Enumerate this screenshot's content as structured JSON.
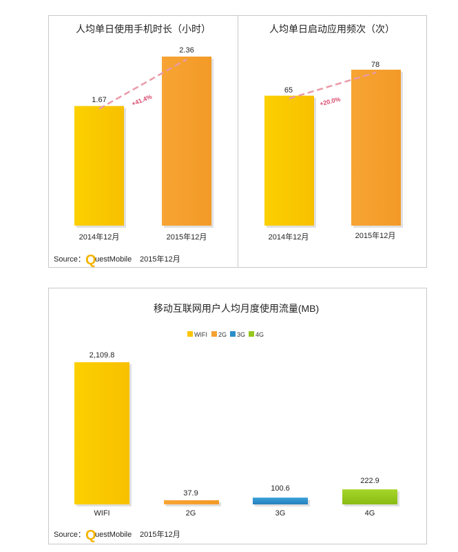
{
  "source_label": "Source：",
  "source_brand": "QuestMobile",
  "source_date": "2015年12月",
  "colors": {
    "yellow": "#fcc500",
    "orange": "#f5a02f",
    "blue": "#2a8ec9",
    "green": "#96c81e",
    "trend": "#e89aa8",
    "trend_text": "#d94a6e"
  },
  "chart_data": [
    {
      "type": "bar",
      "title": "人均单日使用手机时长（小时）",
      "categories": [
        "2014年12月",
        "2015年12月"
      ],
      "values": [
        1.67,
        2.36
      ],
      "value_labels": [
        "1.67",
        "2.36"
      ],
      "growth_label": "+41.4%",
      "ylim": [
        0,
        2.36
      ]
    },
    {
      "type": "bar",
      "title": "人均单日启动应用频次（次）",
      "categories": [
        "2014年12月",
        "2015年12月"
      ],
      "values": [
        65,
        78
      ],
      "value_labels": [
        "65",
        "78"
      ],
      "growth_label": "+20.0%",
      "ylim": [
        0,
        78
      ]
    },
    {
      "type": "bar",
      "title": "移动互联网用户人均月度使用流量(MB)",
      "categories": [
        "WIFI",
        "2G",
        "3G",
        "4G"
      ],
      "values": [
        2109.8,
        37.9,
        100.6,
        222.9
      ],
      "value_labels": [
        "2,109.8",
        "37.9",
        "100.6",
        "222.9"
      ],
      "legend": [
        "WIFI",
        "2G",
        "3G",
        "4G"
      ],
      "legend_position": "top-center",
      "ylim": [
        0,
        2109.8
      ]
    }
  ]
}
